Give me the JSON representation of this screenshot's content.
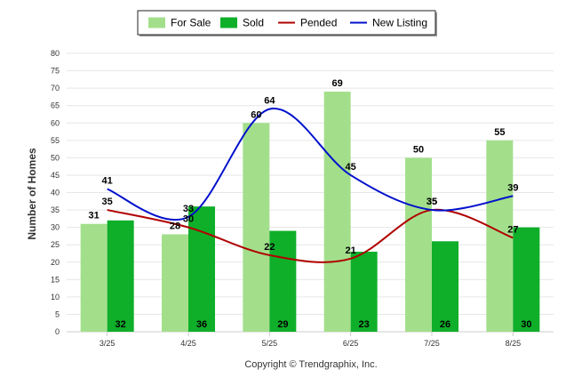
{
  "chart_data": {
    "type": "bar",
    "categories": [
      "3/25",
      "4/25",
      "5/25",
      "6/25",
      "7/25",
      "8/25"
    ],
    "series": [
      {
        "name": "For Sale",
        "kind": "bar",
        "color": "#a3df8b",
        "values": [
          31,
          28,
          60,
          69,
          50,
          55
        ]
      },
      {
        "name": "Sold",
        "kind": "bar",
        "color": "#0faf2a",
        "values": [
          32,
          36,
          29,
          23,
          26,
          30
        ]
      },
      {
        "name": "Pended",
        "kind": "line",
        "color": "#b00000",
        "values": [
          35,
          30,
          22,
          21,
          35,
          27
        ]
      },
      {
        "name": "New Listing",
        "kind": "line",
        "color": "#0010cc",
        "values": [
          41,
          33,
          64,
          45,
          35,
          39
        ]
      }
    ],
    "ylabel": "Number of Homes",
    "ylim": [
      0,
      80
    ],
    "yticks": [
      0,
      5,
      10,
      15,
      20,
      25,
      30,
      35,
      40,
      45,
      50,
      55,
      60,
      65,
      70,
      75,
      80
    ],
    "grid": true,
    "legend": "top-center",
    "footer": "Copyright © Trendgraphix, Inc."
  }
}
